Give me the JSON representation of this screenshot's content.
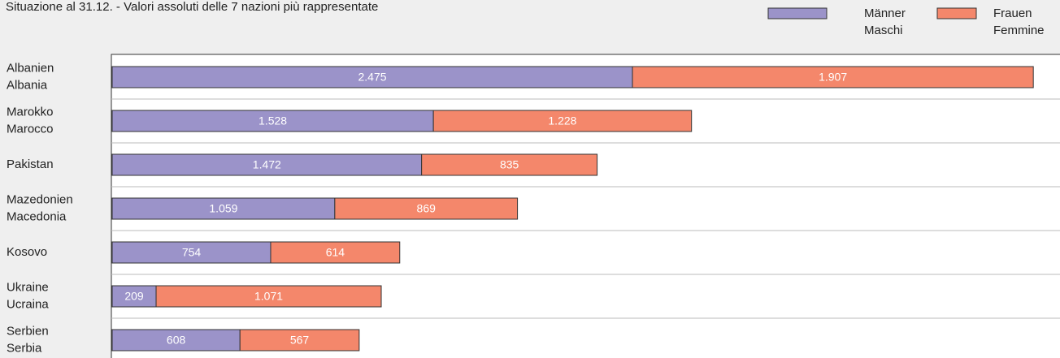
{
  "chart_data": {
    "type": "stacked-bar-horizontal",
    "title": "Situazione al 31.12. - Valori assoluti delle 7 nazioni più rappresentate",
    "categories": [
      [
        "Albanien",
        "Albania"
      ],
      [
        "Marokko",
        "Marocco"
      ],
      [
        "Pakistan"
      ],
      [
        "Mazedonien",
        "Macedonia"
      ],
      [
        "Kosovo"
      ],
      [
        "Ukraine",
        "Ucraina"
      ],
      [
        "Serbien",
        "Serbia"
      ]
    ],
    "series": [
      {
        "name": [
          "Männer",
          "Maschi"
        ],
        "color": "#9b93c9",
        "values": [
          2475,
          1528,
          1472,
          1059,
          754,
          209,
          608
        ],
        "value_labels": [
          "2.475",
          "1.528",
          "1.472",
          "1.059",
          "754",
          "209",
          "608"
        ]
      },
      {
        "name": [
          "Frauen",
          "Femmine"
        ],
        "color": "#f4876b",
        "values": [
          1907,
          1228,
          835,
          869,
          614,
          1071,
          567
        ],
        "value_labels": [
          "1.907",
          "1.228",
          "835",
          "869",
          "614",
          "1.071",
          "567"
        ]
      }
    ]
  }
}
